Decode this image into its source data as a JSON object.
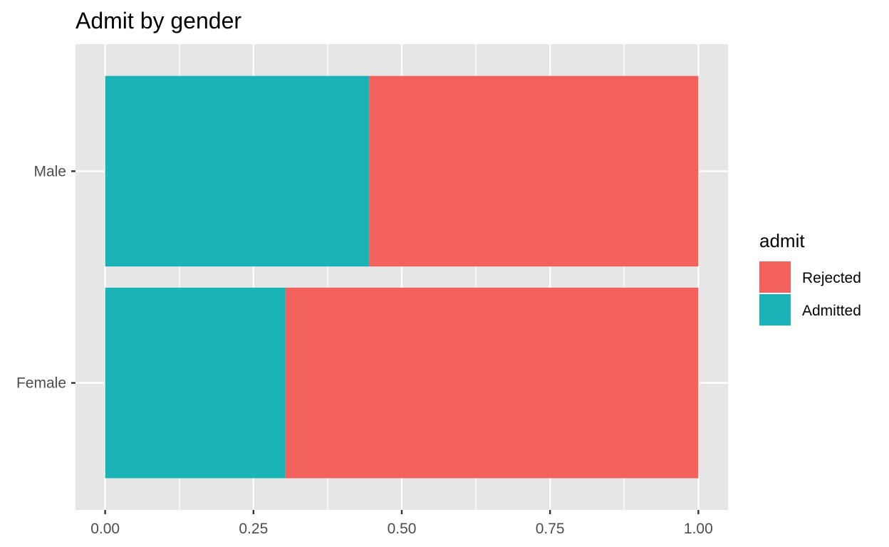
{
  "chart_data": {
    "type": "bar",
    "orientation": "horizontal",
    "stacked": true,
    "title": "Admit by gender",
    "xlabel": "",
    "ylabel": "",
    "categories": [
      "Male",
      "Female"
    ],
    "series": [
      {
        "name": "Admitted",
        "color": "#1ab3b8",
        "values": [
          0.445,
          0.304
        ]
      },
      {
        "name": "Rejected",
        "color": "#f2615b",
        "values": [
          0.555,
          0.696
        ]
      }
    ],
    "xlim": [
      -0.05,
      1.05
    ],
    "xticks": [
      "0.00",
      "0.25",
      "0.50",
      "0.75",
      "1.00"
    ],
    "xtick_values": [
      0,
      0.25,
      0.5,
      0.75,
      1.0
    ],
    "grid": true,
    "panel_background": "#e6e6e6",
    "legend": {
      "title": "admit",
      "position": "right",
      "items": [
        {
          "label": "Rejected",
          "color": "#f2615b"
        },
        {
          "label": "Admitted",
          "color": "#1ab3b8"
        }
      ]
    }
  }
}
